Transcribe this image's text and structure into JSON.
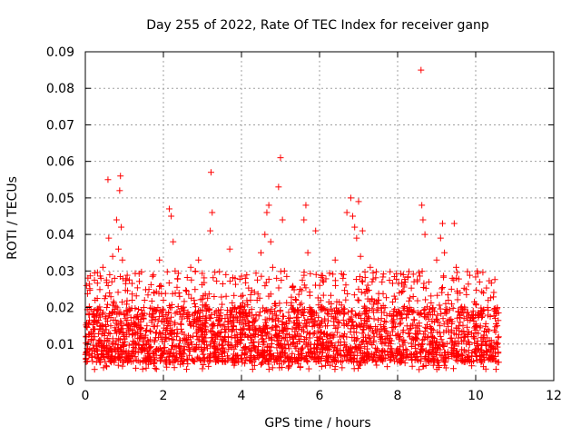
{
  "chart_data": {
    "type": "scatter",
    "title": "Day 255 of 2022, Rate Of TEC Index for receiver ganp",
    "xlabel": "GPS time / hours",
    "ylabel": "ROTI / TECUs",
    "xlim": [
      0,
      12
    ],
    "ylim": [
      0,
      0.09
    ],
    "xticks": [
      0,
      2,
      4,
      6,
      8,
      10,
      12
    ],
    "xtick_labels": [
      "0",
      "2",
      "4",
      "6",
      "8",
      "10",
      "12"
    ],
    "yticks": [
      0,
      0.01,
      0.02,
      0.03,
      0.04,
      0.05,
      0.06,
      0.07,
      0.08,
      0.09
    ],
    "ytick_labels": [
      "0",
      "0.01",
      "0.02",
      "0.03",
      "0.04",
      "0.05",
      "0.06",
      "0.07",
      "0.08",
      "0.09"
    ],
    "grid": true,
    "marker": "+",
    "color": "#ff0000",
    "series": [
      {
        "name": "ROTI",
        "x": [
          0.02,
          0.05,
          0.1,
          0.15,
          0.2,
          0.25,
          0.3,
          0.35,
          0.4,
          0.45,
          0.5,
          0.55,
          0.58,
          0.6,
          0.62,
          0.65,
          0.7,
          0.75,
          0.8,
          0.85,
          0.88,
          0.9,
          0.92,
          0.95,
          1.0,
          1.05,
          1.1,
          1.2,
          1.3,
          1.4,
          1.5,
          1.6,
          1.7,
          1.8,
          1.9,
          2.0,
          2.1,
          2.15,
          2.2,
          2.25,
          2.3,
          2.35,
          2.4,
          2.5,
          2.6,
          2.7,
          2.8,
          2.9,
          3.0,
          3.1,
          3.2,
          3.22,
          3.25,
          3.3,
          3.4,
          3.5,
          3.6,
          3.7,
          3.8,
          3.9,
          4.0,
          4.1,
          4.2,
          4.3,
          4.4,
          4.5,
          4.6,
          4.65,
          4.7,
          4.75,
          4.8,
          4.85,
          4.9,
          4.95,
          5.0,
          5.05,
          5.1,
          5.2,
          5.3,
          5.4,
          5.5,
          5.6,
          5.65,
          5.7,
          5.8,
          5.9,
          6.0,
          6.1,
          6.2,
          6.3,
          6.4,
          6.5,
          6.6,
          6.7,
          6.8,
          6.85,
          6.9,
          6.95,
          7.0,
          7.05,
          7.1,
          7.2,
          7.3,
          7.4,
          7.5,
          7.6,
          7.7,
          7.8,
          7.9,
          8.0,
          8.1,
          8.2,
          8.3,
          8.4,
          8.5,
          8.6,
          8.62,
          8.65,
          8.7,
          8.8,
          8.9,
          9.0,
          9.1,
          9.15,
          9.2,
          9.3,
          9.4,
          9.45,
          9.5,
          9.6,
          9.7,
          9.8,
          9.9,
          10.0,
          10.1,
          10.2,
          10.3,
          10.4,
          10.5,
          10.55
        ],
        "y": [
          0.012,
          0.008,
          0.018,
          0.011,
          0.014,
          0.022,
          0.016,
          0.01,
          0.028,
          0.031,
          0.013,
          0.02,
          0.055,
          0.039,
          0.024,
          0.015,
          0.034,
          0.028,
          0.044,
          0.036,
          0.052,
          0.056,
          0.042,
          0.033,
          0.018,
          0.012,
          0.015,
          0.022,
          0.01,
          0.014,
          0.02,
          0.011,
          0.016,
          0.013,
          0.033,
          0.022,
          0.017,
          0.047,
          0.045,
          0.038,
          0.03,
          0.014,
          0.024,
          0.011,
          0.018,
          0.031,
          0.021,
          0.033,
          0.012,
          0.019,
          0.041,
          0.057,
          0.046,
          0.023,
          0.013,
          0.017,
          0.029,
          0.036,
          0.015,
          0.011,
          0.02,
          0.028,
          0.014,
          0.016,
          0.022,
          0.035,
          0.04,
          0.046,
          0.048,
          0.038,
          0.031,
          0.021,
          0.028,
          0.053,
          0.061,
          0.044,
          0.03,
          0.017,
          0.012,
          0.022,
          0.025,
          0.044,
          0.048,
          0.035,
          0.018,
          0.041,
          0.012,
          0.027,
          0.015,
          0.021,
          0.033,
          0.019,
          0.028,
          0.046,
          0.05,
          0.045,
          0.042,
          0.039,
          0.049,
          0.034,
          0.041,
          0.025,
          0.031,
          0.012,
          0.022,
          0.027,
          0.016,
          0.011,
          0.019,
          0.008,
          0.018,
          0.027,
          0.013,
          0.023,
          0.015,
          0.085,
          0.048,
          0.044,
          0.04,
          0.027,
          0.018,
          0.033,
          0.039,
          0.043,
          0.035,
          0.022,
          0.028,
          0.043,
          0.031,
          0.024,
          0.017,
          0.012,
          0.018,
          0.021,
          0.027,
          0.024,
          0.014,
          0.011,
          0.017,
          0.015
        ]
      }
    ],
    "background_band": {
      "note": "dense cloud of points between 0.005 and 0.02 ROTI from 0 to 10.6 hours",
      "x_start": 0,
      "x_end": 10.6,
      "y_low": 0.005,
      "y_high": 0.02,
      "count": 2600
    }
  }
}
